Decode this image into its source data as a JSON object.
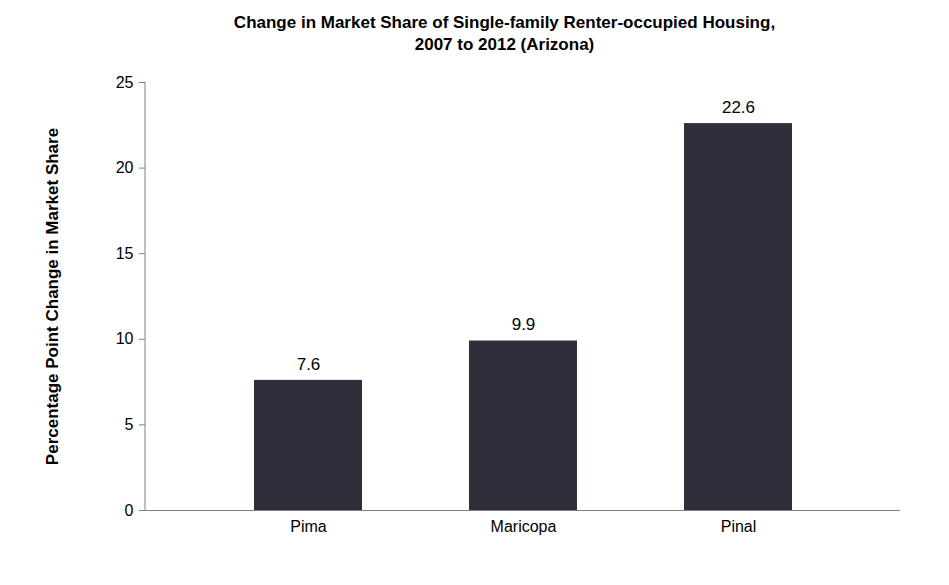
{
  "chart_data": {
    "type": "bar",
    "title": "Change in Market Share of Single-family Renter-occupied Housing,\n2007 to 2012 (Arizona)",
    "y_label": "Percentage Point Change in Market Share",
    "categories": [
      "Pima",
      "Maricopa",
      "Pinal"
    ],
    "values": [
      7.6,
      9.9,
      22.6
    ],
    "color": "#2f2f3b",
    "ylim": [
      0,
      25
    ],
    "yticks": [
      0,
      5,
      10,
      15,
      20,
      25
    ],
    "grid": false,
    "data_labels": true
  }
}
